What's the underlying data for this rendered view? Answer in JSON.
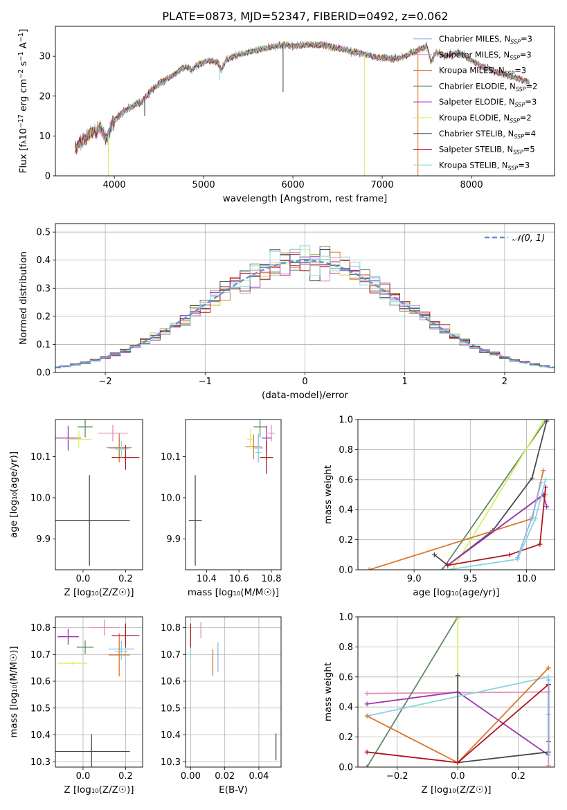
{
  "title": "PLATE=0873, MJD=52347, FIBERID=0492, z=0.062",
  "colors": {
    "Chabrier MILES": "#8fb3e6",
    "Salpeter MILES": "#e58fb8",
    "Kroupa MILES": "#d9782e",
    "Chabrier ELODIE": "#5e8a63",
    "Salpeter ELODIE": "#9c33b0",
    "Kroupa ELODIE": "#d7ef5e",
    "Chabrier STELIB": "#4a4a4a",
    "Salpeter STELIB": "#b0151d",
    "Kroupa STELIB": "#84d6df",
    "gauss": "#5b8fd6"
  },
  "chart_data": [
    {
      "type": "line",
      "id": "spectrum",
      "title": "PLATE=0873, MJD=52347, FIBERID=0492, z=0.062",
      "xlabel": "wavelength [Angstrom, rest frame]",
      "ylabel_parts": [
        "Flux [f",
        "λ",
        "10",
        "−17",
        " erg cm",
        "−2",
        " s",
        "−1",
        " A",
        "−1",
        "]"
      ],
      "xlim": [
        3340,
        8930
      ],
      "ylim": [
        0,
        37.5
      ],
      "xticks": [
        "4000",
        "5000",
        "6000",
        "7000",
        "8000"
      ],
      "xtick_values": [
        4000,
        5000,
        6000,
        7000,
        8000
      ],
      "yticks": [
        "0",
        "10",
        "20",
        "30"
      ],
      "ytick_values": [
        0,
        10,
        20,
        30
      ],
      "legend_placement": "right",
      "legend": [
        {
          "prefix": "Chabrier MILES, N",
          "sub": "SSP",
          "suffix": "=3",
          "color": "#8fb3e6"
        },
        {
          "prefix": "Salpeter MILES, N",
          "sub": "SSP",
          "suffix": "=3",
          "color": "#e58fb8"
        },
        {
          "prefix": "Kroupa MILES, N",
          "sub": "SSP",
          "suffix": "=3",
          "color": "#d9782e"
        },
        {
          "prefix": "Chabrier ELODIE, N",
          "sub": "SSP",
          "suffix": "=2",
          "color": "#5e8a63"
        },
        {
          "prefix": "Salpeter ELODIE, N",
          "sub": "SSP",
          "suffix": "=3",
          "color": "#9c33b0"
        },
        {
          "prefix": "Kroupa ELODIE, N",
          "sub": "SSP",
          "suffix": "=2",
          "color": "#d7ef5e"
        },
        {
          "prefix": "Chabrier STELIB, N",
          "sub": "SSP",
          "suffix": "=4",
          "color": "#4a4a4a"
        },
        {
          "prefix": "Salpeter STELIB, N",
          "sub": "SSP",
          "suffix": "=5",
          "color": "#b0151d"
        },
        {
          "prefix": "Kroupa STELIB, N",
          "sub": "SSP",
          "suffix": "=3",
          "color": "#84d6df"
        }
      ],
      "continuum": [
        [
          3560,
          7
        ],
        [
          3650,
          9
        ],
        [
          3750,
          11
        ],
        [
          3850,
          12
        ],
        [
          3920,
          9
        ],
        [
          3960,
          12.5
        ],
        [
          4000,
          14
        ],
        [
          4100,
          16
        ],
        [
          4200,
          17.5
        ],
        [
          4300,
          18.5
        ],
        [
          4400,
          21
        ],
        [
          4500,
          23
        ],
        [
          4600,
          24.5
        ],
        [
          4700,
          26
        ],
        [
          4800,
          27.5
        ],
        [
          4860,
          26.5
        ],
        [
          4950,
          28
        ],
        [
          5050,
          29
        ],
        [
          5150,
          28.5
        ],
        [
          5200,
          26.5
        ],
        [
          5250,
          29
        ],
        [
          5400,
          30.5
        ],
        [
          5600,
          31.5
        ],
        [
          5800,
          32.5
        ],
        [
          5900,
          33
        ],
        [
          6000,
          32.5
        ],
        [
          6200,
          33
        ],
        [
          6400,
          32.5
        ],
        [
          6600,
          31.5
        ],
        [
          6800,
          30.5
        ],
        [
          7000,
          29.5
        ],
        [
          7200,
          29.5
        ],
        [
          7400,
          31.5
        ],
        [
          7500,
          32.5
        ],
        [
          7550,
          28.5
        ],
        [
          7600,
          31
        ],
        [
          7700,
          30
        ],
        [
          7850,
          31
        ],
        [
          8000,
          29
        ],
        [
          8100,
          27.5
        ],
        [
          8300,
          26
        ],
        [
          8500,
          24.5
        ],
        [
          8650,
          23.5
        ]
      ],
      "spikes": [
        [
          3933,
          0
        ],
        [
          6800,
          0
        ],
        [
          7400,
          0
        ],
        [
          5890,
          21
        ],
        [
          5180,
          24
        ],
        [
          4340,
          15
        ]
      ]
    },
    {
      "type": "histogram",
      "id": "residuals",
      "xlabel": "(data-model)/error",
      "ylabel": "Normed distribution",
      "xlim": [
        -2.5,
        2.5
      ],
      "ylim": [
        0,
        0.53
      ],
      "xticks": [
        "−2",
        "−1",
        "0",
        "1",
        "2"
      ],
      "xtick_values": [
        -2,
        -1,
        0,
        1,
        2
      ],
      "yticks": [
        "0.0",
        "0.1",
        "0.2",
        "0.3",
        "0.4",
        "0.5"
      ],
      "ytick_values": [
        0,
        0.1,
        0.2,
        0.3,
        0.4,
        0.5
      ],
      "bin_width": 0.1,
      "gauss_label": "𝒩(0, 1)",
      "grid": true
    },
    {
      "type": "scatter",
      "id": "age-vs-Z",
      "xlabel": "Z [log₁₀(Z/Z☉)]",
      "ylabel": "age  [log₁₀(age/yr)]",
      "xlim": [
        -0.13,
        0.28
      ],
      "ylim": [
        9.825,
        10.19
      ],
      "xticks": [
        "0.0",
        "0.2"
      ],
      "xtick_values": [
        0,
        0.2
      ],
      "yticks": [
        "9.9",
        "10.0",
        "10.1"
      ],
      "ytick_values": [
        9.9,
        10.0,
        10.1
      ],
      "points": [
        {
          "x": 0.03,
          "y": 9.945,
          "ex": 0.19,
          "ey": 0.11,
          "color": "#4a4a4a"
        },
        {
          "x": 0.17,
          "y": 10.122,
          "ex": 0.06,
          "ey": 0.025,
          "color": "#8fb3e6"
        },
        {
          "x": 0.14,
          "y": 10.157,
          "ex": 0.07,
          "ey": 0.02,
          "color": "#e58fb8"
        },
        {
          "x": 0.17,
          "y": 10.121,
          "ex": 0.05,
          "ey": 0.035,
          "color": "#d9782e"
        },
        {
          "x": 0.01,
          "y": 10.172,
          "ex": 0.035,
          "ey": 0.025,
          "color": "#5e8a63"
        },
        {
          "x": -0.07,
          "y": 10.145,
          "ex": 0.06,
          "ey": 0.03,
          "color": "#9c33b0"
        },
        {
          "x": -0.02,
          "y": 10.142,
          "ex": 0.06,
          "ey": 0.02,
          "color": "#d7ef5e"
        },
        {
          "x": 0.2,
          "y": 10.098,
          "ex": 0.065,
          "ey": 0.03,
          "color": "#b0151d"
        },
        {
          "x": 0.18,
          "y": 10.118,
          "ex": 0.03,
          "ey": 0.02,
          "color": "#84d6df"
        }
      ]
    },
    {
      "type": "scatter",
      "id": "age-vs-mass",
      "xlabel": "mass [log₁₀(M/M☉)]",
      "ylabel": "",
      "xlim": [
        10.27,
        10.86
      ],
      "ylim": [
        9.825,
        10.19
      ],
      "xticks": [
        "10.4",
        "10.6",
        "10.8"
      ],
      "xtick_values": [
        10.4,
        10.6,
        10.8
      ],
      "yticks": [
        "9.9",
        "10.0",
        "10.1"
      ],
      "ytick_values": [
        9.9,
        10.0,
        10.1
      ],
      "points": [
        {
          "x": 10.33,
          "y": 9.945,
          "ex": 0.04,
          "ey": 0.11,
          "color": "#4a4a4a"
        },
        {
          "x": 10.72,
          "y": 10.121,
          "ex": 0.03,
          "ey": 0.035,
          "color": "#8fb3e6"
        },
        {
          "x": 10.8,
          "y": 10.157,
          "ex": 0.02,
          "ey": 0.02,
          "color": "#e58fb8"
        },
        {
          "x": 10.69,
          "y": 10.124,
          "ex": 0.05,
          "ey": 0.03,
          "color": "#d9782e"
        },
        {
          "x": 10.73,
          "y": 10.172,
          "ex": 0.04,
          "ey": 0.025,
          "color": "#5e8a63"
        },
        {
          "x": 10.77,
          "y": 10.145,
          "ex": 0.03,
          "ey": 0.03,
          "color": "#9c33b0"
        },
        {
          "x": 10.67,
          "y": 10.142,
          "ex": 0.02,
          "ey": 0.025,
          "color": "#d7ef5e"
        },
        {
          "x": 10.77,
          "y": 10.098,
          "ex": 0.04,
          "ey": 0.04,
          "color": "#b0151d"
        },
        {
          "x": 10.72,
          "y": 10.11,
          "ex": 0.02,
          "ey": 0.02,
          "color": "#84d6df"
        }
      ]
    },
    {
      "type": "line",
      "id": "weight-vs-age",
      "xlabel": "age  [log₁₀(age/yr)]",
      "ylabel": "mass weight",
      "xlim": [
        8.5,
        10.25
      ],
      "ylim": [
        0,
        1
      ],
      "xticks": [
        "9.0",
        "9.5",
        "10.0"
      ],
      "xtick_values": [
        9.0,
        9.5,
        10.0
      ],
      "yticks": [
        "0.0",
        "0.2",
        "0.4",
        "0.6",
        "0.8",
        "1.0"
      ],
      "ytick_values": [
        0,
        0.2,
        0.4,
        0.6,
        0.8,
        1.0
      ],
      "grid": true,
      "series": [
        {
          "color": "#5e8a63",
          "points": [
            [
              9.25,
              0.0
            ],
            [
              10.18,
              1.0
            ]
          ]
        },
        {
          "color": "#d7ef5e",
          "points": [
            [
              9.35,
              0.01
            ],
            [
              10.15,
              0.99
            ]
          ]
        },
        {
          "color": "#4a4a4a",
          "points": [
            [
              9.18,
              0.1
            ],
            [
              9.3,
              0.03
            ],
            [
              9.7,
              0.26
            ],
            [
              10.05,
              0.61
            ],
            [
              10.18,
              0.99
            ]
          ]
        },
        {
          "color": "#e58fb8",
          "points": [
            [
              9.3,
              0.03
            ],
            [
              10.1,
              0.47
            ],
            [
              10.17,
              0.5
            ]
          ]
        },
        {
          "color": "#d9782e",
          "points": [
            [
              8.6,
              0.0
            ],
            [
              10.05,
              0.34
            ],
            [
              10.15,
              0.66
            ]
          ]
        },
        {
          "color": "#9c33b0",
          "points": [
            [
              9.3,
              0.03
            ],
            [
              10.15,
              0.5
            ],
            [
              10.18,
              0.42
            ]
          ]
        },
        {
          "color": "#b0151d",
          "points": [
            [
              9.3,
              0.03
            ],
            [
              9.85,
              0.1
            ],
            [
              10.12,
              0.17
            ],
            [
              10.17,
              0.55
            ]
          ]
        },
        {
          "color": "#84d6df",
          "points": [
            [
              9.3,
              0.0
            ],
            [
              9.92,
              0.07
            ],
            [
              10.08,
              0.34
            ],
            [
              10.17,
              0.6
            ]
          ]
        },
        {
          "color": "#8fb3e6",
          "points": [
            [
              9.92,
              0.08
            ],
            [
              10.05,
              0.35
            ],
            [
              10.13,
              0.58
            ]
          ]
        }
      ]
    },
    {
      "type": "scatter",
      "id": "mass-vs-Z",
      "xlabel": "Z [log₁₀(Z/Z☉)]",
      "ylabel": "mass [log₁₀(M/M☉)]",
      "xlim": [
        -0.13,
        0.28
      ],
      "ylim": [
        10.28,
        10.84
      ],
      "xticks": [
        "0.0",
        "0.2"
      ],
      "xtick_values": [
        0,
        0.2
      ],
      "yticks": [
        "10.3",
        "10.4",
        "10.5",
        "10.6",
        "10.7",
        "10.8"
      ],
      "ytick_values": [
        10.3,
        10.4,
        10.5,
        10.6,
        10.7,
        10.8
      ],
      "grid": true,
      "points": [
        {
          "x": 0.04,
          "y": 10.338,
          "ex": 0.18,
          "ey": 0.065,
          "color": "#4a4a4a"
        },
        {
          "x": 0.18,
          "y": 10.72,
          "ex": 0.06,
          "ey": 0.03,
          "color": "#8fb3e6"
        },
        {
          "x": 0.1,
          "y": 10.8,
          "ex": 0.07,
          "ey": 0.03,
          "color": "#e58fb8"
        },
        {
          "x": 0.17,
          "y": 10.698,
          "ex": 0.05,
          "ey": 0.08,
          "color": "#d9782e"
        },
        {
          "x": 0.01,
          "y": 10.727,
          "ex": 0.04,
          "ey": 0.025,
          "color": "#5e8a63"
        },
        {
          "x": -0.07,
          "y": 10.766,
          "ex": 0.05,
          "ey": 0.03,
          "color": "#9c33b0"
        },
        {
          "x": -0.05,
          "y": 10.667,
          "ex": 0.07,
          "ey": 0.005,
          "color": "#d7ef5e"
        },
        {
          "x": 0.2,
          "y": 10.77,
          "ex": 0.065,
          "ey": 0.045,
          "color": "#b0151d"
        },
        {
          "x": 0.18,
          "y": 10.71,
          "ex": 0.03,
          "ey": 0.03,
          "color": "#84d6df"
        }
      ]
    },
    {
      "type": "scatter",
      "id": "mass-vs-ebv",
      "xlabel": "E(B-V)",
      "ylabel": "",
      "xlim": [
        -0.003,
        0.053
      ],
      "ylim": [
        10.28,
        10.84
      ],
      "xticks": [
        "0.00",
        "0.02",
        "0.04"
      ],
      "xtick_values": [
        0,
        0.02,
        0.04
      ],
      "yticks": [
        "10.3",
        "10.4",
        "10.5",
        "10.6",
        "10.7",
        "10.8"
      ],
      "ytick_values": [
        10.3,
        10.4,
        10.5,
        10.6,
        10.7,
        10.8
      ],
      "grid": true,
      "points": [
        {
          "x": 0.05,
          "y": 10.355,
          "ex": 0,
          "ey": 0.05,
          "color": "#4a4a4a"
        },
        {
          "x": 0.0,
          "y": 10.77,
          "ex": 0,
          "ey": 0.045,
          "color": "#b0151d"
        },
        {
          "x": 0.006,
          "y": 10.79,
          "ex": 0,
          "ey": 0.03,
          "color": "#e58fb8"
        },
        {
          "x": 0.0,
          "y": 10.695,
          "ex": 0,
          "ey": 0.03,
          "color": "#d7ef5e"
        },
        {
          "x": 0.0,
          "y": 10.7,
          "ex": 0,
          "ey": 0.025,
          "color": "#84d6df"
        },
        {
          "x": 0.013,
          "y": 10.67,
          "ex": 0,
          "ey": 0.05,
          "color": "#d9782e"
        },
        {
          "x": 0.016,
          "y": 10.69,
          "ex": 0,
          "ey": 0.055,
          "color": "#8fb3e6"
        }
      ]
    },
    {
      "type": "line",
      "id": "weight-vs-Z",
      "xlabel": "Z [log₁₀(Z/Z☉)]",
      "ylabel": "mass weight",
      "xlim": [
        -0.33,
        0.32
      ],
      "ylim": [
        0,
        1
      ],
      "xticks": [
        "−0.2",
        "0.0",
        "0.2"
      ],
      "xtick_values": [
        -0.2,
        0,
        0.2
      ],
      "yticks": [
        "0.0",
        "0.2",
        "0.4",
        "0.6",
        "0.8",
        "1.0"
      ],
      "ytick_values": [
        0,
        0.2,
        0.4,
        0.6,
        0.8,
        1.0
      ],
      "grid": true,
      "series": [
        {
          "color": "#e58fb8",
          "points": [
            [
              -0.3,
              0.49
            ],
            [
              0.3,
              0.5
            ],
            [
              0.3,
              0.01
            ]
          ]
        },
        {
          "color": "#5e8a63",
          "points": [
            [
              -0.3,
              0.0
            ],
            [
              0.0,
              1.0
            ]
          ]
        },
        {
          "color": "#d7ef5e",
          "points": [
            [
              0.0,
              0.0
            ],
            [
              0.0,
              0.99
            ]
          ]
        },
        {
          "color": "#9c33b0",
          "points": [
            [
              -0.3,
              0.42
            ],
            [
              0.0,
              0.5
            ],
            [
              0.3,
              0.08
            ]
          ]
        },
        {
          "color": "#84d6df",
          "points": [
            [
              -0.3,
              0.34
            ],
            [
              0.3,
              0.6
            ],
            [
              0.3,
              0.08
            ]
          ]
        },
        {
          "color": "#4a4a4a",
          "points": [
            [
              0.0,
              0.61
            ],
            [
              0.0,
              0.03
            ],
            [
              0.3,
              0.1
            ],
            [
              0.3,
              0.55
            ]
          ]
        },
        {
          "color": "#d9782e",
          "points": [
            [
              -0.3,
              0.34
            ],
            [
              0.0,
              0.03
            ],
            [
              0.3,
              0.66
            ]
          ]
        },
        {
          "color": "#b0151d",
          "points": [
            [
              -0.3,
              0.1
            ],
            [
              0.0,
              0.03
            ],
            [
              0.3,
              0.55
            ],
            [
              0.3,
              0.17
            ]
          ]
        },
        {
          "color": "#8fb3e6",
          "points": [
            [
              0.3,
              0.35
            ],
            [
              0.3,
              0.58
            ],
            [
              0.3,
              0.08
            ]
          ]
        }
      ]
    }
  ]
}
